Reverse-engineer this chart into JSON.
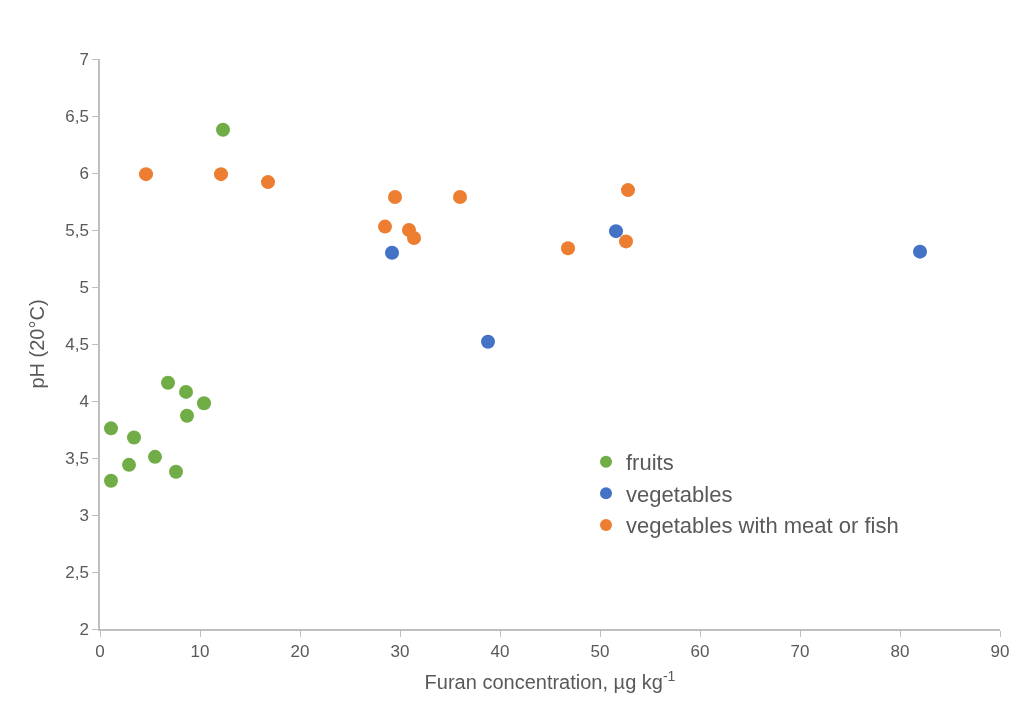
{
  "chart_data": {
    "type": "scatter",
    "xlabel": "Furan concentration, µg kg$^{-1}$",
    "ylabel": "pH (20°C)",
    "xlim": [
      0,
      90
    ],
    "xticks": [
      0,
      10,
      20,
      30,
      40,
      50,
      60,
      70,
      80,
      90
    ],
    "ylim": [
      2,
      7
    ],
    "yticks": [
      2,
      {
        "value": 2.5,
        "label": "2,5"
      },
      3,
      {
        "value": 3.5,
        "label": "3,5"
      },
      4,
      {
        "value": 4.5,
        "label": "4,5"
      },
      5,
      {
        "value": 5.5,
        "label": "5,5"
      },
      6,
      {
        "value": 6.5,
        "label": "6,5"
      },
      7
    ],
    "legend": "bottom right",
    "marker": "circle",
    "series": [
      {
        "name": "fruits",
        "color": "#70ad47",
        "x": [
          12.3,
          6.8,
          8.6,
          10.4,
          8.7,
          1.1,
          3.4,
          5.5,
          2.9,
          7.6,
          1.1
        ],
        "values": [
          6.38,
          4.16,
          4.08,
          3.98,
          3.87,
          3.76,
          3.68,
          3.51,
          3.44,
          3.38,
          3.3
        ]
      },
      {
        "name": "vegetables",
        "color": "#4472c4",
        "x": [
          29.2,
          38.8,
          51.6,
          82.0
        ],
        "values": [
          5.3,
          4.52,
          5.49,
          5.31
        ]
      },
      {
        "name": "vegetables with meat or fish",
        "color": "#ed7d31",
        "x": [
          4.6,
          12.1,
          16.8,
          29.5,
          28.5,
          30.9,
          31.4,
          36.0,
          46.8,
          52.8,
          52.6
        ],
        "values": [
          5.99,
          5.99,
          5.92,
          5.79,
          5.53,
          5.5,
          5.43,
          5.79,
          5.34,
          5.85,
          5.4
        ]
      }
    ]
  }
}
